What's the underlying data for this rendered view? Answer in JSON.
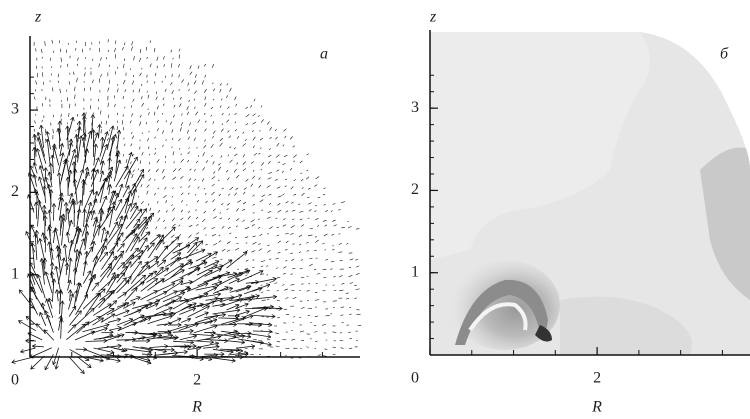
{
  "chart_data": [
    {
      "type": "quiver",
      "panel_label": "а",
      "xlabel": "R",
      "ylabel": "z",
      "xlim": [
        0,
        3.95
      ],
      "ylim": [
        0,
        3.9
      ],
      "xticks": [
        0,
        2
      ],
      "yticks": [
        1,
        2,
        3
      ]
    },
    {
      "type": "density",
      "panel_label": "б",
      "xlabel": "R",
      "ylabel": "z",
      "xlim": [
        0,
        3.83
      ],
      "ylim": [
        0,
        3.95
      ],
      "xticks": [
        0,
        2
      ],
      "yticks": [
        1,
        2,
        3
      ]
    }
  ]
}
